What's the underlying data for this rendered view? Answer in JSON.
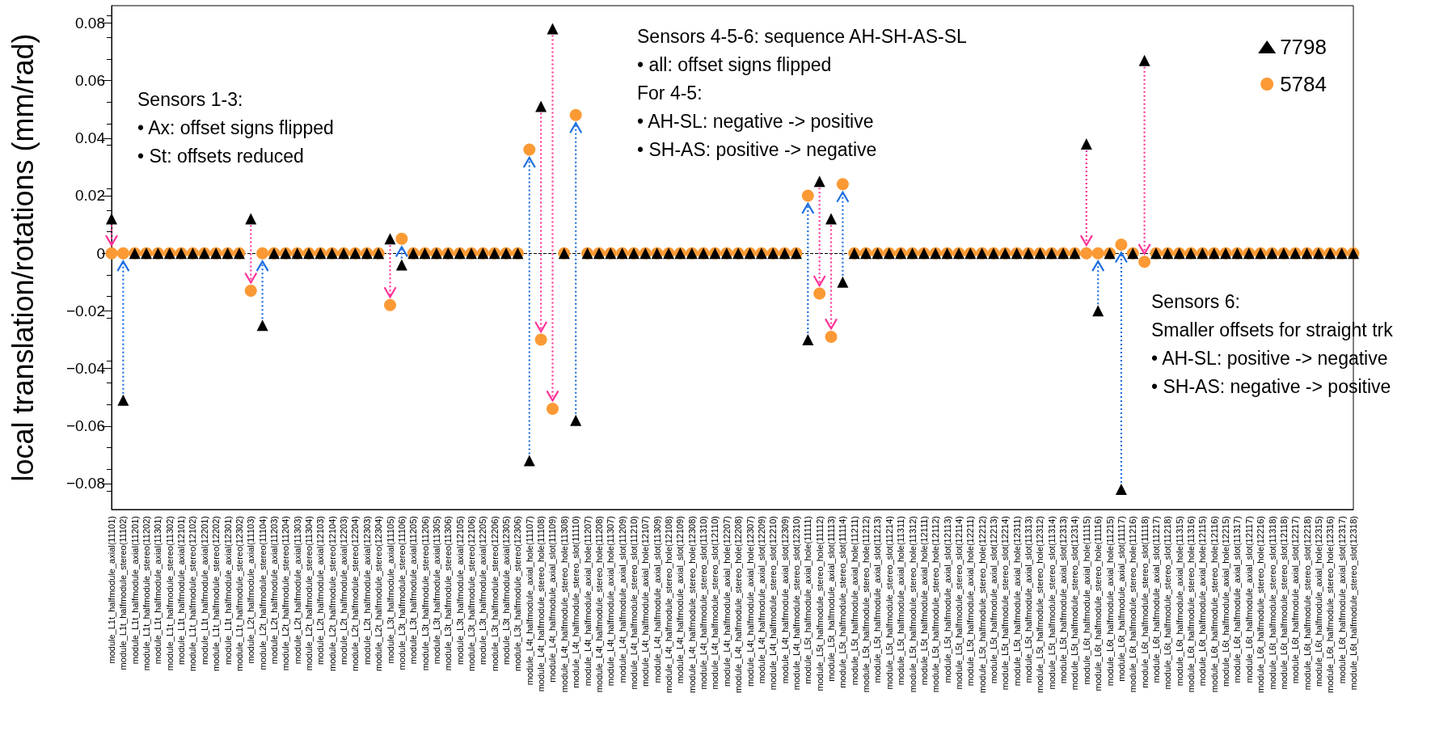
{
  "chart_data": {
    "type": "scatter",
    "ylabel": "local translation/rotations (mm/rad)",
    "categories": [
      "module_L1t_halfmodule_axial(11101)",
      "module_L1t_halfmodule_stereo(11102)",
      "module_L1t_halfmodule_axial(11201)",
      "module_L1t_halfmodule_stereo(11202)",
      "module_L1t_halfmodule_axial(11301)",
      "module_L1t_halfmodule_stereo(11302)",
      "module_L1t_halfmodule_axial(12101)",
      "module_L1t_halfmodule_stereo(12102)",
      "module_L1t_halfmodule_axial(12201)",
      "module_L1t_halfmodule_stereo(12202)",
      "module_L1t_halfmodule_axial(12301)",
      "module_L1t_halfmodule_stereo(12302)",
      "module_L2t_halfmodule_axial(11103)",
      "module_L2t_halfmodule_stereo(11104)",
      "module_L2t_halfmodule_axial(11203)",
      "module_L2t_halfmodule_stereo(11204)",
      "module_L2t_halfmodule_axial(11303)",
      "module_L2t_halfmodule_stereo(11304)",
      "module_L2t_halfmodule_axial(12103)",
      "module_L2t_halfmodule_stereo(12104)",
      "module_L2t_halfmodule_axial(12203)",
      "module_L2t_halfmodule_stereo(12204)",
      "module_L2t_halfmodule_axial(12303)",
      "module_L2t_halfmodule_stereo(12304)",
      "module_L3t_halfmodule_axial(11105)",
      "module_L3t_halfmodule_stereo(11106)",
      "module_L3t_halfmodule_axial(11205)",
      "module_L3t_halfmodule_stereo(11206)",
      "module_L3t_halfmodule_axial(11305)",
      "module_L3t_halfmodule_stereo(11306)",
      "module_L3t_halfmodule_axial(12105)",
      "module_L3t_halfmodule_stereo(12106)",
      "module_L3t_halfmodule_axial(12205)",
      "module_L3t_halfmodule_stereo(12206)",
      "module_L3t_halfmodule_axial(12305)",
      "module_L3t_halfmodule_stereo(12306)",
      "module_L4t_halfmodule_axial_hole(11107)",
      "module_L4t_halfmodule_stereo_hole(11108)",
      "module_L4t_halfmodule_axial_slot(11109)",
      "module_L4t_halfmodule_stereo_hole(11308)",
      "module_L4t_halfmodule_stereo_slot(11110)",
      "module_L4t_halfmodule_axial_hole(11207)",
      "module_L4t_halfmodule_stereo_hole(11208)",
      "module_L4t_halfmodule_axial_hole(11307)",
      "module_L4t_halfmodule_axial_slot(11209)",
      "module_L4t_halfmodule_stereo_slot(11210)",
      "module_L4t_halfmodule_axial_hole(12107)",
      "module_L4t_halfmodule_axial_slot(11309)",
      "module_L4t_halfmodule_stereo_hole(12108)",
      "module_L4t_halfmodule_axial_slot(12109)",
      "module_L4t_halfmodule_stereo_hole(12308)",
      "module_L4t_halfmodule_stereo_slot(11310)",
      "module_L4t_halfmodule_stereo_slot(12110)",
      "module_L4t_halfmodule_axial_hole(12207)",
      "module_L4t_halfmodule_stereo_hole(12208)",
      "module_L4t_halfmodule_axial_hole(12307)",
      "module_L4t_halfmodule_axial_slot(12209)",
      "module_L4t_halfmodule_stereo_slot(12210)",
      "module_L4t_halfmodule_axial_slot(12309)",
      "module_L4t_halfmodule_stereo_slot(12310)",
      "module_L5t_halfmodule_axial_hole(11111)",
      "module_L5t_halfmodule_stereo_hole(11112)",
      "module_L5t_halfmodule_axial_slot(11113)",
      "module_L5t_halfmodule_stereo_slot(11114)",
      "module_L5t_halfmodule_axial_hole(11211)",
      "module_L5t_halfmodule_stereo_hole(11212)",
      "module_L5t_halfmodule_axial_slot(11213)",
      "module_L5t_halfmodule_stereo_slot(11214)",
      "module_L5t_halfmodule_axial_hole(11311)",
      "module_L5t_halfmodule_stereo_hole(11312)",
      "module_L5t_halfmodule_axial_hole(12111)",
      "module_L5t_halfmodule_stereo_hole(12112)",
      "module_L5t_halfmodule_axial_slot(12113)",
      "module_L5t_halfmodule_stereo_slot(12114)",
      "module_L5t_halfmodule_axial_hole(12211)",
      "module_L5t_halfmodule_stereo_hole(12212)",
      "module_L5t_halfmodule_axial_slot(12213)",
      "module_L5t_halfmodule_stereo_slot(12214)",
      "module_L5t_halfmodule_axial_hole(12311)",
      "module_L5t_halfmodule_axial_slot(11313)",
      "module_L5t_halfmodule_stereo_hole(12312)",
      "module_L5t_halfmodule_stereo_slot(11314)",
      "module_L5t_halfmodule_axial_slot(12313)",
      "module_L5t_halfmodule_stereo_slot(12314)",
      "module_L6t_halfmodule_axial_hole(11115)",
      "module_L6t_halfmodule_stereo_hole(11116)",
      "module_L6t_halfmodule_axial_hole(11215)",
      "module_L6t_halfmodule_axial_slot(11117)",
      "module_L6t_halfmodule_stereo_hole(11216)",
      "module_L6t_halfmodule_stereo_slot(11118)",
      "module_L6t_halfmodule_axial_slot(11217)",
      "module_L6t_halfmodule_stereo_slot(11218)",
      "module_L6t_halfmodule_axial_hole(11315)",
      "module_L6t_halfmodule_stereo_hole(11316)",
      "module_L6t_halfmodule_axial_hole(12115)",
      "module_L6t_halfmodule_stereo_hole(12116)",
      "module_L6t_halfmodule_axial_hole(12215)",
      "module_L6t_halfmodule_axial_slot(11317)",
      "module_L6t_halfmodule_axial_slot(12117)",
      "module_L6t_halfmodule_stereo_hole(12216)",
      "module_L6t_halfmodule_stereo_slot(11318)",
      "module_L6t_halfmodule_stereo_slot(12118)",
      "module_L6t_halfmodule_axial_slot(12217)",
      "module_L6t_halfmodule_stereo_slot(12218)",
      "module_L6t_halfmodule_axial_hole(12315)",
      "module_L6t_halfmodule_stereo_hole(12316)",
      "module_L6t_halfmodule_axial_slot(12317)",
      "module_L6t_halfmodule_stereo_slot(12318)"
    ],
    "series": [
      {
        "name": "7798",
        "color": "#000000",
        "marker": "triangle",
        "values": [
          0.012,
          -0.051,
          0,
          0,
          0,
          0,
          0,
          0,
          0,
          0,
          0,
          0,
          0.012,
          -0.025,
          0,
          0,
          0,
          0,
          0,
          0,
          0,
          0,
          0,
          0,
          0.005,
          -0.004,
          0,
          0,
          0,
          0,
          0,
          0,
          0,
          0,
          0,
          0,
          -0.072,
          0.051,
          0.078,
          0,
          -0.058,
          0,
          0,
          0,
          0,
          0,
          0,
          0,
          0,
          0,
          0,
          0,
          0,
          0,
          0,
          0,
          0,
          0,
          0,
          0,
          -0.03,
          0.025,
          0.012,
          -0.01,
          0,
          0,
          0,
          0,
          0,
          0,
          0,
          0,
          0,
          0,
          0,
          0,
          0,
          0,
          0,
          0,
          0,
          0,
          0,
          0,
          0.038,
          -0.02,
          0,
          -0.082,
          0,
          0.067,
          0,
          0,
          0,
          0,
          0,
          0,
          0,
          0,
          0,
          0,
          0,
          0,
          0,
          0,
          0,
          0,
          0,
          0
        ]
      },
      {
        "name": "5784",
        "color": "#fb9a35",
        "marker": "circle",
        "values": [
          0,
          0,
          0,
          0,
          0,
          0,
          0,
          0,
          0,
          0,
          0,
          0,
          -0.013,
          0,
          0,
          0,
          0,
          0,
          0,
          0,
          0,
          0,
          0,
          0,
          -0.018,
          0.005,
          0,
          0,
          0,
          0,
          0,
          0,
          0,
          0,
          0,
          0,
          0.036,
          -0.03,
          -0.054,
          0,
          0.048,
          0,
          0,
          0,
          0,
          0,
          0,
          0,
          0,
          0,
          0,
          0,
          0,
          0,
          0,
          0,
          0,
          0,
          0,
          0,
          0.02,
          -0.014,
          -0.029,
          0.024,
          0,
          0,
          0,
          0,
          0,
          0,
          0,
          0,
          0,
          0,
          0,
          0,
          0,
          0,
          0,
          0,
          0,
          0,
          0,
          0,
          0,
          0,
          0,
          0.003,
          0,
          -0.003,
          0,
          0,
          0,
          0,
          0,
          0,
          0,
          0,
          0,
          0,
          0,
          0,
          0,
          0,
          0,
          0,
          0,
          0
        ]
      }
    ],
    "ylim": [
      -0.089,
      0.086
    ],
    "yticks": [
      -0.08,
      -0.06,
      -0.04,
      -0.02,
      0,
      0.02,
      0.04,
      0.06,
      0.08
    ],
    "ref_lines": [
      {
        "axis": "y",
        "value": 0,
        "color": "#000000",
        "line_style": "dashed"
      }
    ],
    "legend": "top right",
    "grid": false,
    "annotations": [
      "Sensors 1-3:\n• Ax: offset signs flipped\n• St: offsets reduced",
      "Sensors 4-5-6: sequence AH-SH-AS-SL\n• all: offset signs flipped\nFor 4-5:\n• AH-SL: negative -> positive\n• SH-AS: positive -> negative",
      "Sensors 6:\nSmaller offsets for straight trk\n• AH-SL: positive -> negative\n• SH-AS: negative -> positive"
    ]
  }
}
